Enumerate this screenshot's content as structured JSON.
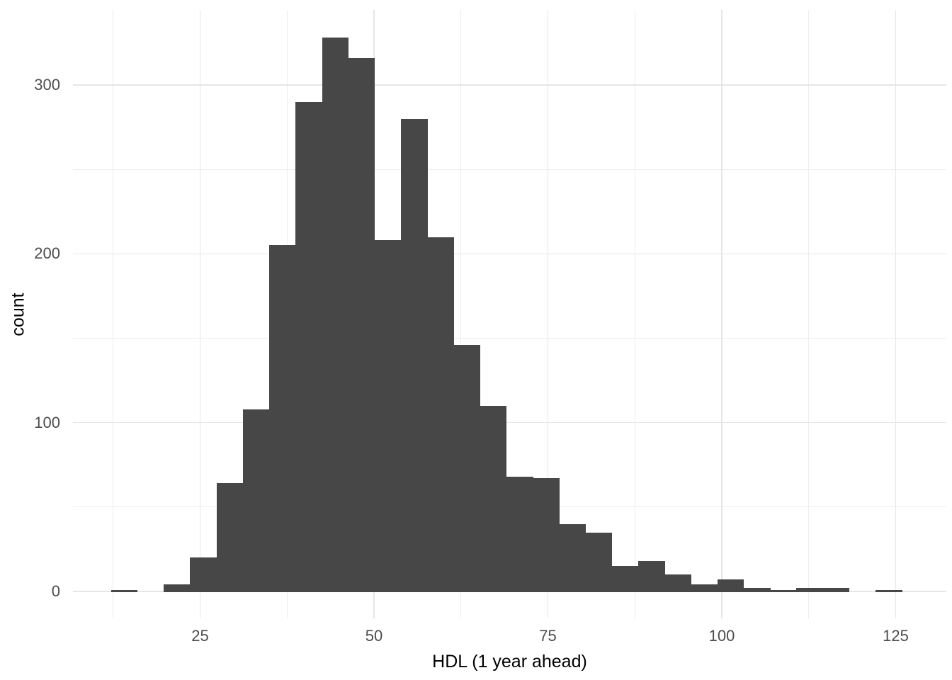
{
  "figure": {
    "background_color": "#ffffff",
    "bar_color": "#474747",
    "major_grid_color": "#e6e6e6",
    "minor_grid_color": "#ededed",
    "tick_label_color": "#4d4d4d",
    "axis_title_color": "#000000"
  },
  "chart_data": {
    "type": "bar",
    "subtype": "histogram",
    "title": "",
    "xlabel": "HDL (1 year ahead)",
    "ylabel": "count",
    "x_major_ticks": [
      25,
      50,
      75,
      100,
      125
    ],
    "x_minor_gridlines": [
      12.5,
      37.5,
      62.5,
      87.5,
      112.5
    ],
    "y_major_ticks": [
      0,
      100,
      200,
      300
    ],
    "y_minor_gridlines": [
      50,
      150,
      250
    ],
    "xlim": [
      6.8,
      131.5
    ],
    "ylim": [
      -16.5,
      345
    ],
    "grid": "on",
    "legend": "none",
    "bin_start": 12.2,
    "bin_width": 3.79,
    "counts": [
      1,
      0,
      4,
      20,
      64,
      108,
      205,
      290,
      328,
      316,
      208,
      280,
      210,
      146,
      110,
      68,
      67,
      40,
      35,
      15,
      18,
      10,
      4,
      7,
      2,
      1,
      2,
      2,
      0,
      1
    ]
  }
}
